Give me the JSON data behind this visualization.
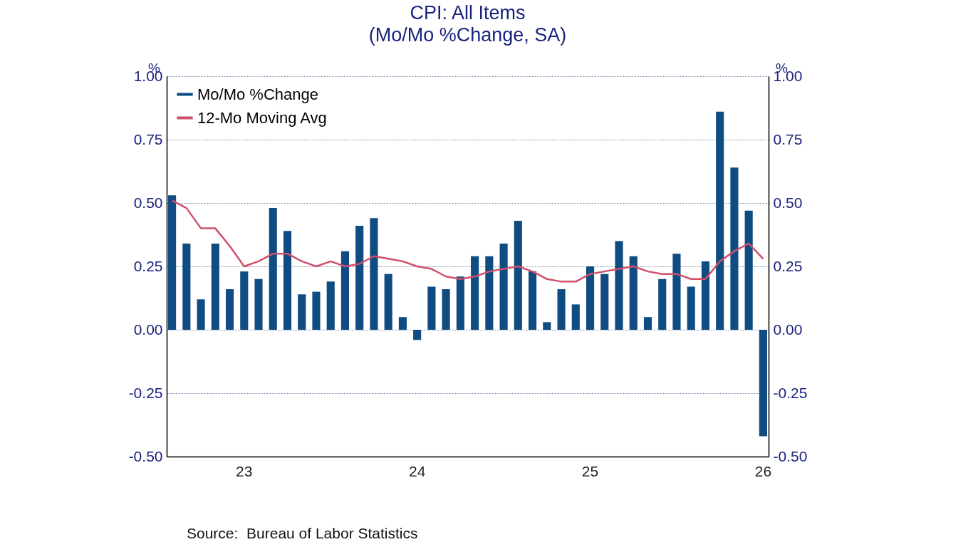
{
  "chart_data": {
    "type": "bar",
    "title": "CPI: All Items",
    "subtitle": "(Mo/Mo %Change, SA)",
    "ylabel": "%",
    "y2label": "%",
    "categories": [
      null,
      null,
      null,
      null,
      null,
      "23",
      null,
      null,
      null,
      null,
      null,
      null,
      null,
      null,
      null,
      null,
      null,
      "24",
      null,
      null,
      null,
      null,
      null,
      null,
      null,
      null,
      null,
      null,
      null,
      "25",
      null,
      null,
      null,
      null,
      null,
      null,
      null,
      null,
      null,
      null,
      null,
      "26"
    ],
    "series": [
      {
        "name": "Mo/Mo %Change",
        "color": "#0f4c81",
        "values": [
          0.53,
          0.34,
          0.12,
          0.34,
          0.16,
          0.23,
          0.2,
          0.48,
          0.39,
          0.14,
          0.15,
          0.19,
          0.31,
          0.41,
          0.44,
          0.22,
          0.05,
          -0.04,
          0.17,
          0.16,
          0.21,
          0.29,
          0.29,
          0.34,
          0.43,
          0.23,
          0.03,
          0.16,
          0.1,
          0.25,
          0.22,
          0.35,
          0.29,
          0.05,
          0.2,
          0.3,
          0.17,
          0.27,
          0.86,
          0.64,
          0.47,
          -0.42
        ]
      },
      {
        "name": "12-Mo Moving Avg",
        "type": "line",
        "color": "#d0506a",
        "values": [
          0.51,
          0.48,
          0.4,
          0.4,
          0.33,
          0.25,
          0.27,
          0.3,
          0.3,
          0.27,
          0.25,
          0.27,
          0.25,
          0.26,
          0.29,
          0.28,
          0.27,
          0.25,
          0.24,
          0.21,
          0.2,
          0.21,
          0.23,
          0.24,
          0.25,
          0.23,
          0.2,
          0.19,
          0.19,
          0.22,
          0.23,
          0.24,
          0.25,
          0.23,
          0.22,
          0.22,
          0.2,
          0.2,
          0.27,
          0.31,
          0.34,
          0.28
        ]
      }
    ],
    "ylim": [
      -0.5,
      1.0
    ],
    "yticks": [
      {
        "value": -0.5,
        "label": "-0.50"
      },
      {
        "value": -0.25,
        "label": "-0.25"
      },
      {
        "value": 0,
        "label": "0.00"
      },
      {
        "value": 0.25,
        "label": "0.25"
      },
      {
        "value": 0.5,
        "label": "0.50"
      },
      {
        "value": 0.75,
        "label": "0.75"
      },
      {
        "value": 1.0,
        "label": "1.00"
      }
    ],
    "y2lim": [
      -0.5,
      1.0
    ],
    "y2ticks": [
      {
        "value": -0.5,
        "label": "-0.50"
      },
      {
        "value": -0.25,
        "label": "-0.25"
      },
      {
        "value": 0,
        "label": "0.00"
      },
      {
        "value": 0.25,
        "label": "0.25"
      },
      {
        "value": 0.5,
        "label": "0.50"
      },
      {
        "value": 0.75,
        "label": "0.75"
      },
      {
        "value": 1.0,
        "label": "1.00"
      }
    ],
    "grid": "y",
    "legend": "top left",
    "annotations": [
      "Source:  Bureau of Labor Statistics"
    ]
  }
}
